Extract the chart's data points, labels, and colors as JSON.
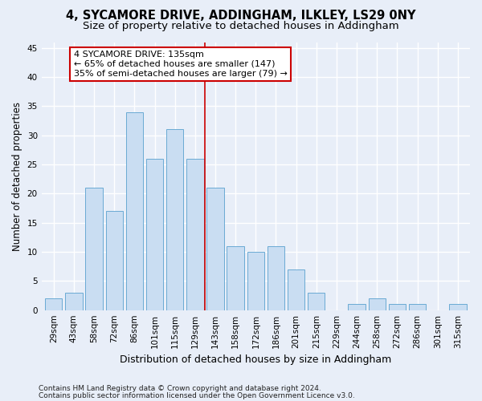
{
  "title": "4, SYCAMORE DRIVE, ADDINGHAM, ILKLEY, LS29 0NY",
  "subtitle": "Size of property relative to detached houses in Addingham",
  "xlabel": "Distribution of detached houses by size in Addingham",
  "ylabel": "Number of detached properties",
  "bar_labels": [
    "29sqm",
    "43sqm",
    "58sqm",
    "72sqm",
    "86sqm",
    "101sqm",
    "115sqm",
    "129sqm",
    "143sqm",
    "158sqm",
    "172sqm",
    "186sqm",
    "201sqm",
    "215sqm",
    "229sqm",
    "244sqm",
    "258sqm",
    "272sqm",
    "286sqm",
    "301sqm",
    "315sqm"
  ],
  "bar_values": [
    2,
    3,
    21,
    17,
    34,
    26,
    31,
    26,
    21,
    11,
    10,
    11,
    7,
    3,
    0,
    1,
    2,
    1,
    1,
    0,
    1
  ],
  "bar_color": "#c9ddf2",
  "bar_edge_color": "#6aaad4",
  "vline_x_index": 7.5,
  "vline_color": "#cc0000",
  "annotation_text": "4 SYCAMORE DRIVE: 135sqm\n← 65% of detached houses are smaller (147)\n35% of semi-detached houses are larger (79) →",
  "annotation_box_color": "#ffffff",
  "annotation_box_edge": "#cc0000",
  "ylim": [
    0,
    46
  ],
  "yticks": [
    0,
    5,
    10,
    15,
    20,
    25,
    30,
    35,
    40,
    45
  ],
  "footer1": "Contains HM Land Registry data © Crown copyright and database right 2024.",
  "footer2": "Contains public sector information licensed under the Open Government Licence v3.0.",
  "bg_color": "#e8eef8",
  "plot_bg_color": "#e8eef8",
  "grid_color": "#ffffff",
  "title_fontsize": 10.5,
  "subtitle_fontsize": 9.5,
  "axis_label_fontsize": 8.5,
  "tick_fontsize": 7.5,
  "footer_fontsize": 6.5
}
